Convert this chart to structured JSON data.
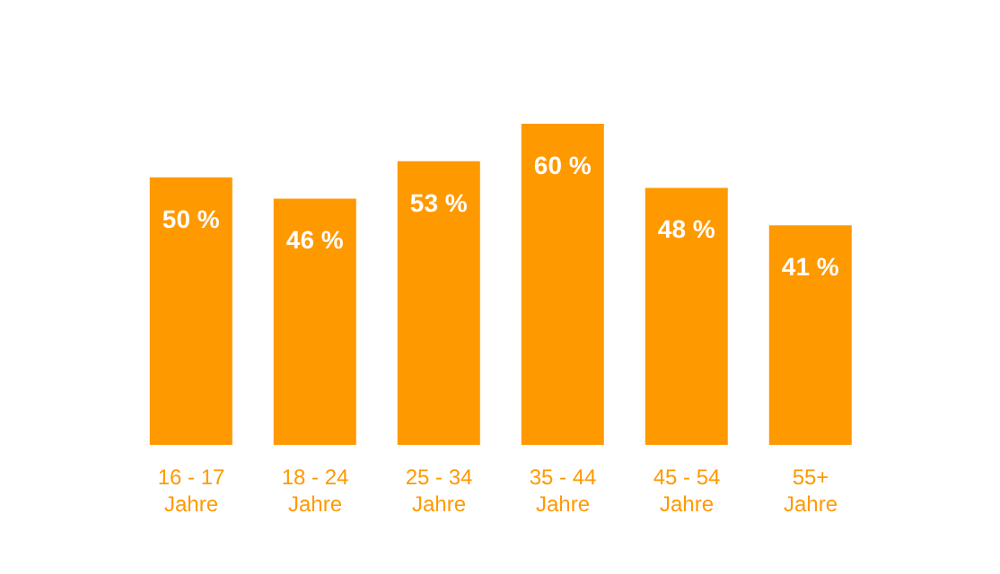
{
  "chart_data": {
    "type": "bar",
    "categories": [
      "16 - 17\nJahre",
      "18 - 24\nJahre",
      "25 - 34\nJahre",
      "35 - 44\nJahre",
      "45 - 54\nJahre",
      "55+\nJahre"
    ],
    "values": [
      50,
      46,
      53,
      60,
      48,
      41
    ],
    "value_labels": [
      "50 %",
      "46 %",
      "53 %",
      "60 %",
      "48 %",
      "41 %"
    ],
    "color": "#ff9900",
    "grid": false,
    "legend": false
  }
}
